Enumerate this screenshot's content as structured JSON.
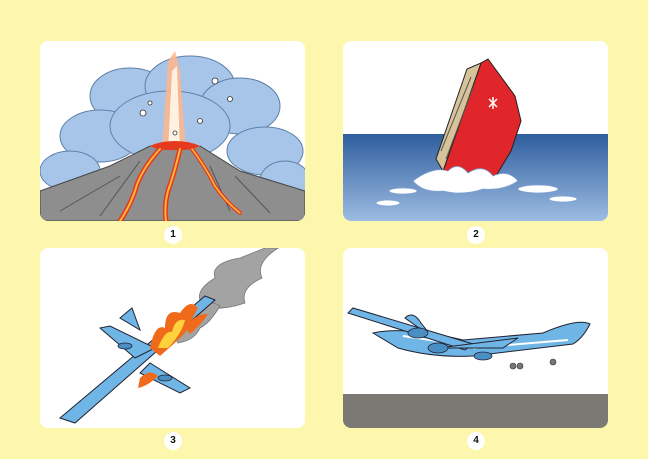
{
  "panels": [
    {
      "number": "1",
      "subject": "volcano-eruption"
    },
    {
      "number": "2",
      "subject": "sinking-ship"
    },
    {
      "number": "3",
      "subject": "burning-plane"
    },
    {
      "number": "4",
      "subject": "airplane-flying"
    }
  ],
  "colors": {
    "background": "#fdf7ae",
    "panel": "#ffffff",
    "sea": "#3f6fb0",
    "ship_hull": "#e0262b",
    "plane": "#6fb6e6",
    "fire": "#f06a1b",
    "ground": "#7c7975"
  }
}
